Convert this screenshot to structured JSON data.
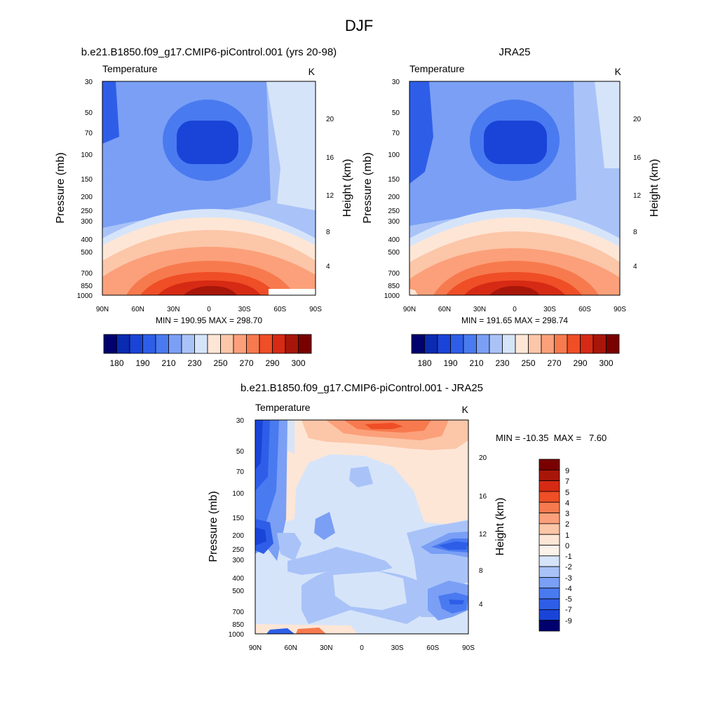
{
  "figure_title": "DJF",
  "chart_data": [
    {
      "type": "heatmap",
      "title": "b.e21.B1850.f09_g17.CMIP6-piControl.001 (yrs 20-98)",
      "subtitle": "Temperature",
      "units": "K",
      "xlabel": "",
      "ylabel": "Pressure (mb)",
      "ylabel_right": "Height (km)",
      "x_ticks": [
        "90N",
        "60N",
        "30N",
        "0",
        "30S",
        "60S",
        "90S"
      ],
      "x_range": [
        90,
        -90
      ],
      "y_ticks": [
        "30",
        "50",
        "70",
        "100",
        "150",
        "200",
        "250",
        "300",
        "400",
        "500",
        "700",
        "850",
        "1000"
      ],
      "y_range": [
        30,
        1000
      ],
      "y_scale": "log",
      "right_ticks": [
        "20",
        "16",
        "12",
        "8",
        "4"
      ],
      "stats": "MIN = 190.95  MAX = 298.70",
      "min": 190.95,
      "max": 298.7,
      "colorbar_labels": [
        "180",
        "190",
        "210",
        "230",
        "250",
        "270",
        "290",
        "300"
      ],
      "colorbar_orientation": "horizontal",
      "colorbar_colors": [
        "#00006e",
        "#0a2ab0",
        "#1a44d8",
        "#2e5ee8",
        "#4a7af0",
        "#7a9ff5",
        "#a9c3f8",
        "#d6e4fa",
        "#fde6d6",
        "#fcc6a8",
        "#fba07a",
        "#f77a4e",
        "#ef4e26",
        "#d62a14",
        "#a8160a",
        "#7a0000"
      ]
    },
    {
      "type": "heatmap",
      "title": "JRA25",
      "subtitle": "Temperature",
      "units": "K",
      "xlabel": "",
      "ylabel": "Pressure (mb)",
      "ylabel_right": "Height (km)",
      "x_ticks": [
        "90N",
        "60N",
        "30N",
        "0",
        "30S",
        "60S",
        "90S"
      ],
      "x_range": [
        90,
        -90
      ],
      "y_ticks": [
        "30",
        "50",
        "70",
        "100",
        "150",
        "200",
        "250",
        "300",
        "400",
        "500",
        "700",
        "850",
        "1000"
      ],
      "y_range": [
        30,
        1000
      ],
      "y_scale": "log",
      "right_ticks": [
        "20",
        "16",
        "12",
        "8",
        "4"
      ],
      "stats": "MIN = 191.65  MAX = 298.74",
      "min": 191.65,
      "max": 298.74,
      "colorbar_labels": [
        "180",
        "190",
        "210",
        "230",
        "250",
        "270",
        "290",
        "300"
      ],
      "colorbar_orientation": "horizontal",
      "colorbar_colors": [
        "#00006e",
        "#0a2ab0",
        "#1a44d8",
        "#2e5ee8",
        "#4a7af0",
        "#7a9ff5",
        "#a9c3f8",
        "#d6e4fa",
        "#fde6d6",
        "#fcc6a8",
        "#fba07a",
        "#f77a4e",
        "#ef4e26",
        "#d62a14",
        "#a8160a",
        "#7a0000"
      ]
    },
    {
      "type": "heatmap",
      "title": "b.e21.B1850.f09_g17.CMIP6-piControl.001 - JRA25",
      "subtitle": "Temperature",
      "units": "K",
      "xlabel": "",
      "ylabel": "Pressure (mb)",
      "ylabel_right": "Height (km)",
      "x_ticks": [
        "90N",
        "60N",
        "30N",
        "0",
        "30S",
        "60S",
        "90S"
      ],
      "x_range": [
        90,
        -90
      ],
      "y_ticks": [
        "30",
        "50",
        "70",
        "100",
        "150",
        "200",
        "250",
        "300",
        "400",
        "500",
        "700",
        "850",
        "1000"
      ],
      "y_range": [
        30,
        1000
      ],
      "y_scale": "log",
      "right_ticks": [
        "20",
        "16",
        "12",
        "8",
        "4"
      ],
      "stats": "MIN = -10.35  MAX =   7.60",
      "min": -10.35,
      "max": 7.6,
      "colorbar_labels": [
        "9",
        "7",
        "5",
        "4",
        "3",
        "2",
        "1",
        "0",
        "-1",
        "-2",
        "-3",
        "-4",
        "-5",
        "-7",
        "-9"
      ],
      "colorbar_orientation": "vertical",
      "colorbar_colors": [
        "#7a0000",
        "#a8160a",
        "#d62a14",
        "#ef4e26",
        "#f77a4e",
        "#fba07a",
        "#fcc6a8",
        "#fde6d6",
        "#fdf2ea",
        "#d6e4fa",
        "#a9c3f8",
        "#7a9ff5",
        "#4a7af0",
        "#2e5ee8",
        "#1a44d8",
        "#00006e"
      ]
    }
  ]
}
